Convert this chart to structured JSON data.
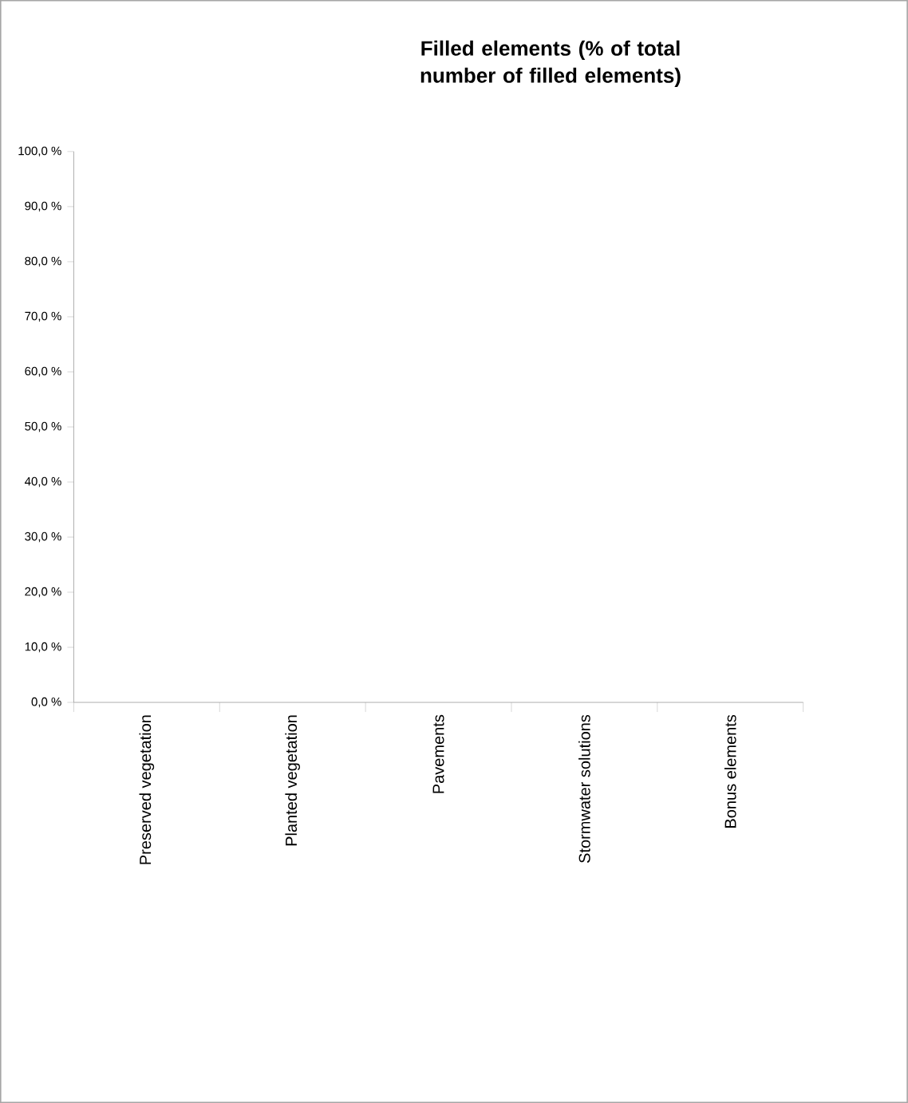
{
  "chart_data": {
    "type": "bar",
    "title": "Filled elements (% of total number of filled elements)",
    "categories": [
      "Preserved vegetation",
      "Planted vegetation",
      "Pavements",
      "Stormwater solutions",
      "Bonus elements"
    ],
    "values": [
      0,
      0,
      0,
      0,
      0
    ],
    "ylim": [
      0,
      100
    ],
    "yticks": [
      {
        "value": 0,
        "label": "0,0 %"
      },
      {
        "value": 10,
        "label": "10,0 %"
      },
      {
        "value": 20,
        "label": "20,0 %"
      },
      {
        "value": 30,
        "label": "30,0 %"
      },
      {
        "value": 40,
        "label": "40,0 %"
      },
      {
        "value": 50,
        "label": "50,0 %"
      },
      {
        "value": 60,
        "label": "60,0 %"
      },
      {
        "value": 70,
        "label": "70,0 %"
      },
      {
        "value": 80,
        "label": "80,0 %"
      },
      {
        "value": 90,
        "label": "90,0 %"
      },
      {
        "value": 100,
        "label": "100,0 %"
      }
    ],
    "grid": false
  }
}
